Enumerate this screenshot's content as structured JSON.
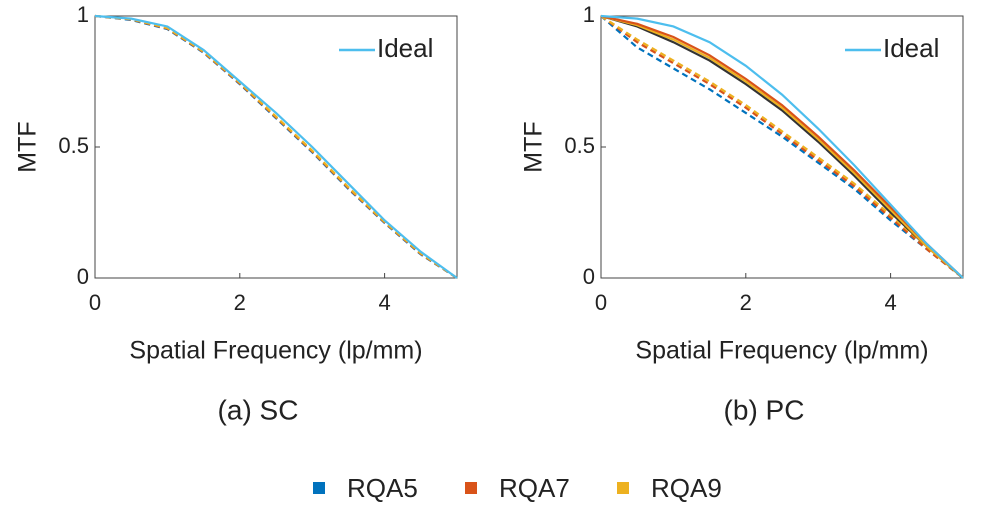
{
  "chart_data": [
    {
      "type": "line",
      "caption": "(a) SC",
      "xlabel": "Spatial Frequency  (lp/mm)",
      "ylabel": "MTF",
      "xlim": [
        0,
        5
      ],
      "ylim": [
        0,
        1
      ],
      "xticks": [
        0,
        2,
        4
      ],
      "yticks": [
        0,
        0.5,
        1
      ],
      "legend_loc": "northeast",
      "x": [
        0,
        0.5,
        1,
        1.5,
        2,
        2.5,
        3,
        3.5,
        4,
        4.5,
        5
      ],
      "series": [
        {
          "color": "#0072bd",
          "dash": true,
          "values": [
            1,
            0.985,
            0.95,
            0.86,
            0.74,
            0.61,
            0.48,
            0.34,
            0.21,
            0.09,
            0
          ]
        },
        {
          "color": "#d95319",
          "dash": true,
          "values": [
            1,
            0.987,
            0.952,
            0.862,
            0.742,
            0.613,
            0.483,
            0.343,
            0.212,
            0.092,
            0
          ]
        },
        {
          "color": "#edb120",
          "dash": true,
          "values": [
            1,
            0.988,
            0.954,
            0.864,
            0.745,
            0.616,
            0.486,
            0.346,
            0.214,
            0.094,
            0
          ]
        },
        {
          "name": "Ideal",
          "color": "#4dbeee",
          "dash": false,
          "values": [
            1,
            0.99,
            0.96,
            0.87,
            0.75,
            0.63,
            0.5,
            0.36,
            0.22,
            0.1,
            0
          ]
        }
      ]
    },
    {
      "type": "line",
      "caption": "(b) PC",
      "xlabel": "Spatial Frequency  (lp/mm)",
      "ylabel": "MTF",
      "xlim": [
        0,
        5
      ],
      "ylim": [
        0,
        1
      ],
      "xticks": [
        0,
        2,
        4
      ],
      "yticks": [
        0,
        0.5,
        1
      ],
      "legend_loc": "northeast",
      "x": [
        0,
        0.5,
        1,
        1.5,
        2,
        2.5,
        3,
        3.5,
        4,
        4.5,
        5
      ],
      "series": [
        {
          "color": "#0072bd",
          "dash": true,
          "values": [
            1,
            0.88,
            0.8,
            0.72,
            0.63,
            0.54,
            0.44,
            0.34,
            0.22,
            0.11,
            0
          ]
        },
        {
          "color": "#d95319",
          "dash": true,
          "values": [
            1,
            0.9,
            0.82,
            0.74,
            0.65,
            0.55,
            0.45,
            0.35,
            0.23,
            0.11,
            0
          ]
        },
        {
          "color": "#edb120",
          "dash": true,
          "values": [
            1,
            0.91,
            0.83,
            0.75,
            0.66,
            0.56,
            0.46,
            0.36,
            0.24,
            0.12,
            0
          ]
        },
        {
          "color": "#333333",
          "dash": false,
          "values": [
            1,
            0.96,
            0.9,
            0.83,
            0.74,
            0.64,
            0.52,
            0.39,
            0.25,
            0.12,
            0
          ]
        },
        {
          "color": "#edb120",
          "dash": false,
          "values": [
            1,
            0.965,
            0.91,
            0.84,
            0.75,
            0.65,
            0.53,
            0.4,
            0.26,
            0.12,
            0
          ]
        },
        {
          "color": "#d95319",
          "dash": false,
          "values": [
            1,
            0.97,
            0.92,
            0.85,
            0.76,
            0.66,
            0.54,
            0.41,
            0.27,
            0.13,
            0
          ]
        },
        {
          "name": "Ideal",
          "color": "#4dbeee",
          "dash": false,
          "values": [
            1,
            0.99,
            0.96,
            0.9,
            0.81,
            0.7,
            0.57,
            0.43,
            0.28,
            0.13,
            0
          ]
        }
      ]
    }
  ],
  "legend": [
    {
      "name": "RQA5",
      "color": "#0072bd"
    },
    {
      "name": "RQA7",
      "color": "#d95319"
    },
    {
      "name": "RQA9",
      "color": "#edb120"
    }
  ]
}
